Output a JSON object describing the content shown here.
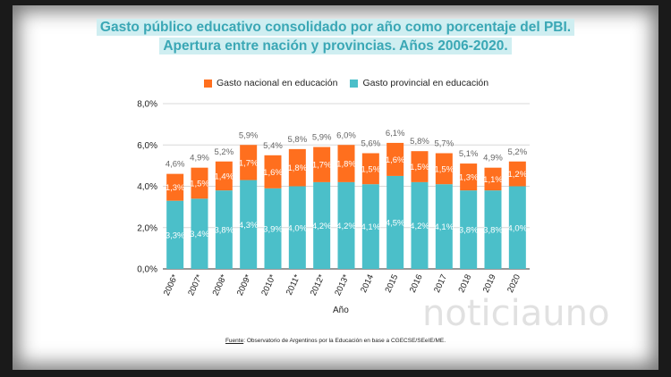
{
  "title_line1": "Gasto público educativo consolidado por año como porcentaje del PBI.",
  "title_line2": "Apertura entre nación y provincias. Años 2006-2020.",
  "source_label": "Fuente",
  "source_text": ": Observatorio de Argentinos por la Educación en base a CGECSE/SEeIE/ME.",
  "watermark": "noticiauno",
  "colors": {
    "nacional": "#ff6f1e",
    "provincial": "#4bbfc9",
    "title_bg": "#cfeef1",
    "title_fg": "#3aa7b5"
  },
  "chart_data": {
    "type": "bar",
    "stacked": true,
    "xlabel": "Año",
    "ylabel": "",
    "ylim": [
      0,
      8
    ],
    "yticks": [
      "0,0%",
      "2,0%",
      "4,0%",
      "6,0%",
      "8,0%"
    ],
    "grid": true,
    "legend_position": "top",
    "categories": [
      "2006*",
      "2007*",
      "2008*",
      "2009*",
      "2010*",
      "2011*",
      "2012*",
      "2013*",
      "2014",
      "2015",
      "2016",
      "2017",
      "2018",
      "2019",
      "2020"
    ],
    "series": [
      {
        "name": "Gasto provincial en educación",
        "values": [
          3.3,
          3.4,
          3.8,
          4.3,
          3.9,
          4.0,
          4.2,
          4.2,
          4.1,
          4.5,
          4.2,
          4.1,
          3.8,
          3.8,
          4.0
        ],
        "labels": [
          "3,3%",
          "3,4%",
          "3,8%",
          "4,3%",
          "3,9%",
          "4,0%",
          "4,2%",
          "4,2%",
          "4,1%",
          "4,5%",
          "4,2%",
          "4,1%",
          "3,8%",
          "3,8%",
          "4,0%"
        ]
      },
      {
        "name": "Gasto nacional en educación",
        "values": [
          1.3,
          1.5,
          1.4,
          1.7,
          1.6,
          1.8,
          1.7,
          1.8,
          1.5,
          1.6,
          1.5,
          1.5,
          1.3,
          1.1,
          1.2
        ],
        "labels": [
          "1,3%",
          "1,5%",
          "1,4%",
          "1,7%",
          "1,6%",
          "1,8%",
          "1,7%",
          "1,8%",
          "1,5%",
          "1,6%",
          "1,5%",
          "1,5%",
          "1,3%",
          "1,1%",
          "1,2%"
        ]
      }
    ],
    "totals": [
      4.6,
      4.9,
      5.2,
      5.9,
      5.4,
      5.8,
      5.9,
      6.0,
      5.6,
      6.1,
      5.8,
      5.7,
      5.1,
      4.9,
      5.2
    ],
    "total_labels": [
      "4,6%",
      "4,9%",
      "5,2%",
      "5,9%",
      "5,4%",
      "5,8%",
      "5,9%",
      "6,0%",
      "5,6%",
      "6,1%",
      "5,8%",
      "5,7%",
      "5,1%",
      "4,9%",
      "5,2%"
    ]
  }
}
